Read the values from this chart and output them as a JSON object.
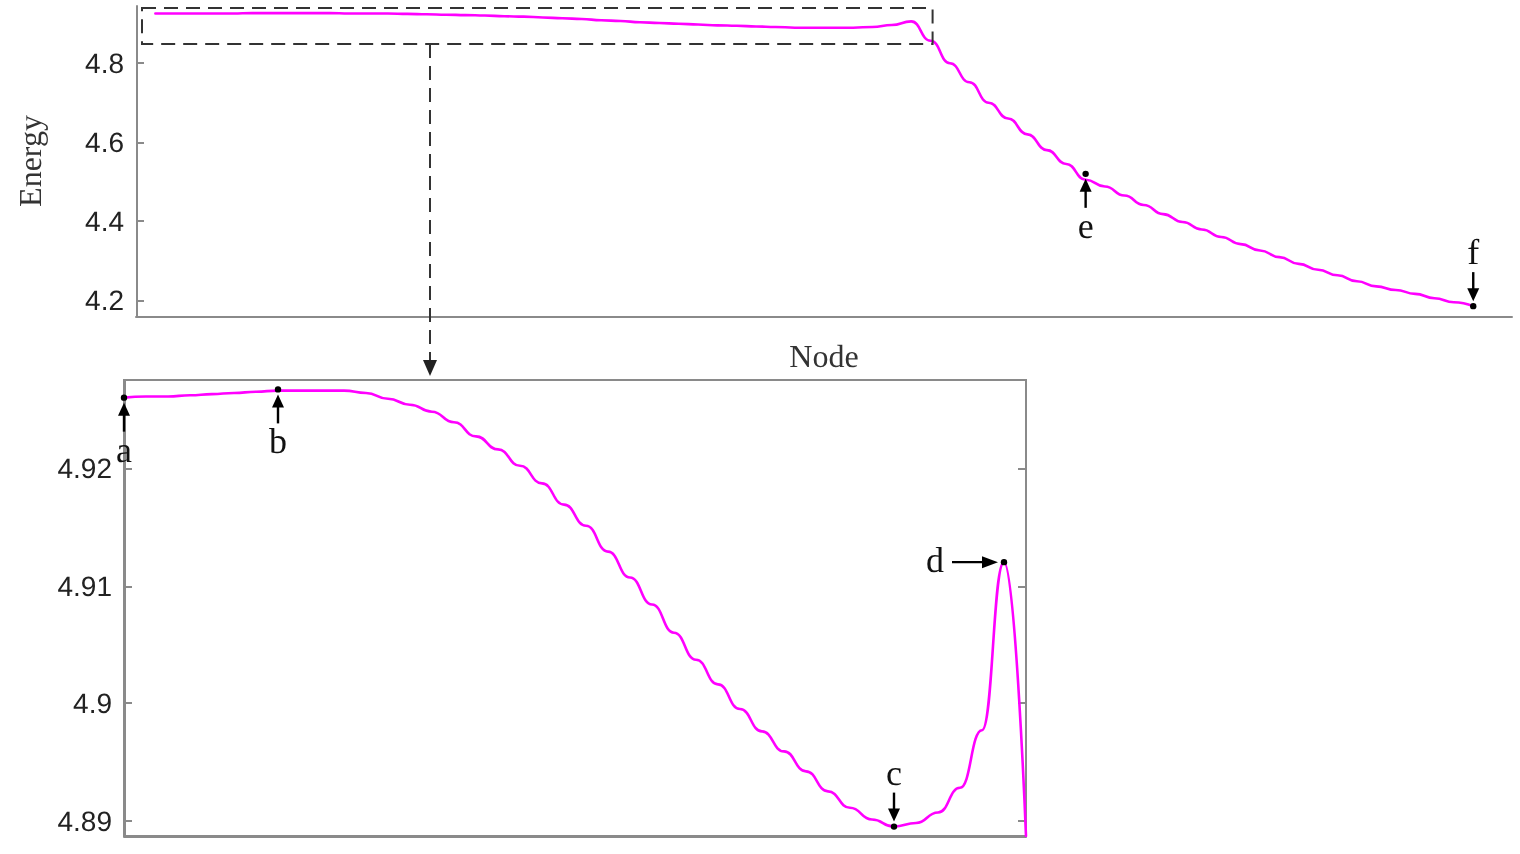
{
  "chart_data": [
    {
      "type": "line",
      "xlabel": "Node",
      "ylabel": "Energy",
      "tick_labels": "y",
      "categories": [
        null,
        null,
        null,
        null,
        null,
        null,
        null,
        null,
        null,
        null,
        null,
        null,
        null,
        null,
        null,
        null,
        null,
        null,
        null,
        null,
        null,
        null,
        null,
        null,
        null,
        null,
        null,
        null,
        null,
        null,
        null,
        null,
        null,
        null,
        null,
        null,
        null,
        null,
        null,
        null,
        null,
        null,
        null,
        null,
        null,
        null,
        null,
        null,
        null,
        null,
        null,
        null,
        null,
        null,
        null,
        null,
        null,
        null,
        null,
        null,
        null,
        null,
        null,
        null,
        null,
        null,
        null,
        null,
        null,
        null,
        null,
        null
      ],
      "series": [
        {
          "color": "#ff00ff",
          "values": [
            null,
            4.926,
            4.926,
            4.926,
            4.926,
            4.926,
            4.927,
            4.927,
            4.927,
            4.927,
            4.927,
            4.926,
            4.926,
            4.926,
            4.925,
            4.924,
            4.923,
            4.922,
            4.921,
            4.919,
            4.918,
            4.916,
            4.914,
            4.912,
            4.909,
            4.907,
            4.904,
            4.902,
            4.9,
            4.898,
            4.896,
            4.895,
            4.893,
            4.892,
            4.89,
            4.89,
            4.89,
            4.89,
            4.892,
            4.897,
            4.906,
            4.857,
            4.8,
            4.752,
            4.7,
            4.66,
            4.62,
            4.58,
            4.545,
            4.505,
            4.488,
            4.465,
            4.441,
            4.418,
            4.398,
            4.379,
            4.36,
            4.342,
            4.326,
            4.309,
            4.292,
            4.277,
            4.263,
            4.248,
            4.235,
            4.226,
            4.216,
            4.205,
            4.195,
            4.185,
            null,
            null
          ]
        }
      ],
      "ylim": [
        4.16,
        4.945
      ],
      "yticks": [
        4.2,
        4.4,
        4.6,
        4.8
      ],
      "annotations": [
        {
          "text": "e",
          "y": 4.52
        },
        {
          "text": "f",
          "y": 4.185
        }
      ]
    },
    {
      "type": "line",
      "tick_labels": "y",
      "categories": [
        null,
        null,
        null,
        null,
        null,
        null,
        null,
        null,
        null,
        null,
        null,
        null,
        null,
        null,
        null,
        null,
        null,
        null,
        null,
        null,
        null,
        null,
        null,
        null,
        null,
        null,
        null,
        null,
        null,
        null,
        null,
        null,
        null,
        null,
        null,
        null,
        null,
        null,
        null,
        null,
        null,
        null
      ],
      "series": [
        {
          "color": "#ff00ff",
          "values": [
            4.926,
            4.9261,
            4.9261,
            4.9262,
            4.9263,
            4.9264,
            4.9265,
            4.9266,
            4.9266,
            4.9266,
            4.9266,
            4.9264,
            4.9259,
            4.9254,
            4.9248,
            4.9239,
            4.9227,
            4.9216,
            4.9202,
            4.9187,
            4.9169,
            4.9151,
            4.9129,
            4.9107,
            4.9084,
            4.906,
            4.9037,
            4.9016,
            4.8995,
            4.8976,
            4.8959,
            4.8942,
            4.8925,
            4.8911,
            4.8901,
            4.8895,
            4.8898,
            4.8907,
            4.8928,
            4.8977,
            4.912,
            4.8887
          ]
        }
      ],
      "ylim": [
        4.8887,
        4.9275
      ],
      "yticks": [
        4.89,
        4.9,
        4.91,
        4.92
      ],
      "annotations": [
        {
          "text": "a",
          "y": 4.926
        },
        {
          "text": "b",
          "y": 4.9267
        },
        {
          "text": "c",
          "y": 4.8895
        },
        "d"
      ]
    }
  ]
}
